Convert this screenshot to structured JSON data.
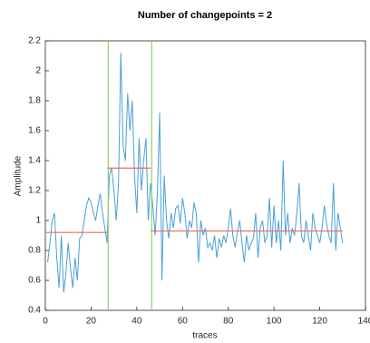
{
  "chart_data": {
    "type": "line",
    "title": "Number of changepoints = 2",
    "x_label": "traces",
    "y_label": "Amplitude",
    "x": [
      1,
      2,
      3,
      4,
      5,
      6,
      7,
      8,
      9,
      10,
      11,
      12,
      13,
      14,
      15,
      16,
      17,
      18,
      19,
      20,
      21,
      22,
      23,
      24,
      25,
      26,
      27,
      28,
      29,
      30,
      31,
      32,
      33,
      34,
      35,
      36,
      37,
      38,
      39,
      40,
      41,
      42,
      43,
      44,
      45,
      46,
      47,
      48,
      49,
      50,
      51,
      52,
      53,
      54,
      55,
      56,
      57,
      58,
      59,
      60,
      61,
      62,
      63,
      64,
      65,
      66,
      67,
      68,
      69,
      70,
      71,
      72,
      73,
      74,
      75,
      76,
      77,
      78,
      79,
      80,
      81,
      82,
      83,
      84,
      85,
      86,
      87,
      88,
      89,
      90,
      91,
      92,
      93,
      94,
      95,
      96,
      97,
      98,
      99,
      100,
      101,
      102,
      103,
      104,
      105,
      106,
      107,
      108,
      109,
      110,
      111,
      112,
      113,
      114,
      115,
      116,
      117,
      118,
      119,
      120,
      121,
      122,
      123,
      124,
      125,
      126,
      127,
      128,
      129,
      130
    ],
    "series": [
      {
        "color": "#4a9fd8",
        "values": [
          0.72,
          0.85,
          1.0,
          1.05,
          0.75,
          0.55,
          0.9,
          0.52,
          0.65,
          0.85,
          0.68,
          0.55,
          0.75,
          0.6,
          0.88,
          0.9,
          1.0,
          1.1,
          1.15,
          1.12,
          1.05,
          1.0,
          1.1,
          1.18,
          1.05,
          0.95,
          0.85,
          1.3,
          1.35,
          1.2,
          1.0,
          1.25,
          2.12,
          1.5,
          1.4,
          1.85,
          1.6,
          1.8,
          1.3,
          1.05,
          1.55,
          1.2,
          1.4,
          1.55,
          1.0,
          1.25,
          1.1,
          0.9,
          1.18,
          1.72,
          0.6,
          1.3,
          1.0,
          0.88,
          1.05,
          0.95,
          1.08,
          1.1,
          0.98,
          1.15,
          1.05,
          0.88,
          1.0,
          0.95,
          1.12,
          1.05,
          0.72,
          1.0,
          0.9,
          0.95,
          0.82,
          0.85,
          0.8,
          0.9,
          0.75,
          0.88,
          0.82,
          0.9,
          0.85,
          0.95,
          1.08,
          0.9,
          0.82,
          0.92,
          1.0,
          0.85,
          0.72,
          0.9,
          0.8,
          0.85,
          0.88,
          1.05,
          0.75,
          0.95,
          1.0,
          0.85,
          0.9,
          1.15,
          0.82,
          1.1,
          0.85,
          1.0,
          0.8,
          1.4,
          0.9,
          1.05,
          0.85,
          0.95,
          0.9,
          1.05,
          1.25,
          0.9,
          0.85,
          1.0,
          0.9,
          0.8,
          1.05,
          0.95,
          0.9,
          0.85,
          0.95,
          1.1,
          0.98,
          0.9,
          0.85,
          1.25,
          0.8,
          1.05,
          0.95,
          0.85
        ]
      }
    ],
    "changepoints": [
      27.5,
      46.5
    ],
    "changepoint_color": "#8fd16a",
    "segments": [
      {
        "start": 0,
        "end": 27,
        "mean": 0.92
      },
      {
        "start": 27,
        "end": 46,
        "mean": 1.35
      },
      {
        "start": 46,
        "end": 130,
        "mean": 0.93
      }
    ],
    "segment_color": "#e8704a",
    "xlim": [
      0,
      140
    ],
    "xticks": [
      0,
      20,
      40,
      60,
      80,
      100,
      120,
      140
    ],
    "ylim": [
      0.4,
      2.2
    ],
    "yticks": [
      0.4,
      0.6,
      0.8,
      1,
      1.2,
      1.4,
      1.6,
      1.8,
      2,
      2.2
    ]
  }
}
